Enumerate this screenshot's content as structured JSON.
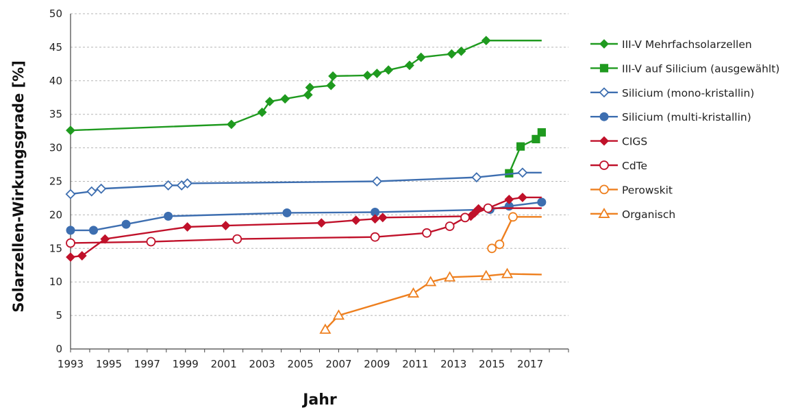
{
  "chart_data": {
    "type": "line",
    "title": "",
    "xlabel": "Jahr",
    "ylabel": "Solarzellen-Wirkungsgrade  [%]",
    "xlim": [
      1993,
      2019
    ],
    "ylim": [
      0,
      50
    ],
    "x_ticks": [
      1993,
      1995,
      1997,
      1999,
      2001,
      2003,
      2005,
      2007,
      2009,
      2011,
      2013,
      2015,
      2017
    ],
    "x_tick_labels": [
      "1993",
      "1995",
      "1997",
      "1999",
      "2001",
      "2003",
      "2005",
      "2007",
      "2009",
      "2011",
      "2013",
      "2015",
      "2017"
    ],
    "y_ticks": [
      0,
      5,
      10,
      15,
      20,
      25,
      30,
      35,
      40,
      45,
      50
    ],
    "y_tick_labels": [
      "0",
      "5",
      "10",
      "15",
      "20",
      "25",
      "30",
      "35",
      "40",
      "45",
      "50"
    ],
    "grid": "horizontal dashed",
    "legend_position": "right",
    "series": [
      {
        "name": "III-V Mehrfachsolarzellen",
        "color": "#1f9a1f",
        "marker": "diamond",
        "filled": true,
        "points": [
          [
            1993.0,
            32.6
          ],
          [
            2001.4,
            33.5
          ],
          [
            2003.0,
            35.3
          ],
          [
            2003.4,
            36.9
          ],
          [
            2004.2,
            37.3
          ],
          [
            2005.4,
            37.9
          ],
          [
            2005.5,
            39.0
          ],
          [
            2006.6,
            39.3
          ],
          [
            2006.7,
            40.7
          ],
          [
            2008.5,
            40.8
          ],
          [
            2009.0,
            41.1
          ],
          [
            2009.6,
            41.6
          ],
          [
            2010.7,
            42.3
          ],
          [
            2011.3,
            43.5
          ],
          [
            2012.9,
            44.0
          ],
          [
            2013.4,
            44.4
          ],
          [
            2014.7,
            46.0
          ]
        ],
        "end": [
          2017.6,
          46.0
        ]
      },
      {
        "name": "III-V auf Silicium (ausgewählt)",
        "color": "#1f9a1f",
        "marker": "square",
        "filled": true,
        "points": [
          [
            2015.9,
            26.2
          ],
          [
            2016.5,
            30.2
          ],
          [
            2017.3,
            31.3
          ],
          [
            2017.6,
            32.3
          ]
        ],
        "end": null
      },
      {
        "name": "Silicium (mono-kristallin)",
        "color": "#3d6eb0",
        "marker": "diamond",
        "filled": false,
        "points": [
          [
            1993.0,
            23.1
          ],
          [
            1994.1,
            23.5
          ],
          [
            1994.6,
            23.9
          ],
          [
            1998.1,
            24.4
          ],
          [
            1998.8,
            24.4
          ],
          [
            1999.1,
            24.7
          ],
          [
            2009.0,
            25.0
          ],
          [
            2014.2,
            25.6
          ],
          [
            2016.6,
            26.3
          ]
        ],
        "end": [
          2017.6,
          26.3
        ]
      },
      {
        "name": "Silicium (multi-kristallin)",
        "color": "#3d6eb0",
        "marker": "circle",
        "filled": true,
        "points": [
          [
            1993.0,
            17.7
          ],
          [
            1994.2,
            17.7
          ],
          [
            1995.9,
            18.6
          ],
          [
            1998.1,
            19.8
          ],
          [
            2004.3,
            20.3
          ],
          [
            2008.9,
            20.4
          ],
          [
            2014.9,
            20.8
          ],
          [
            2015.9,
            21.3
          ],
          [
            2017.6,
            21.9
          ]
        ],
        "end": null
      },
      {
        "name": "CIGS",
        "color": "#c0112a",
        "marker": "diamond",
        "filled": true,
        "points": [
          [
            1993.0,
            13.7
          ],
          [
            1993.6,
            13.9
          ],
          [
            1994.8,
            16.4
          ],
          [
            1999.1,
            18.2
          ],
          [
            2001.1,
            18.4
          ],
          [
            2006.1,
            18.8
          ],
          [
            2007.9,
            19.2
          ],
          [
            2008.9,
            19.4
          ],
          [
            2009.3,
            19.6
          ],
          [
            2013.9,
            19.8
          ],
          [
            2014.1,
            20.3
          ],
          [
            2014.3,
            20.9
          ],
          [
            2014.8,
            21.0
          ],
          [
            2015.9,
            22.3
          ],
          [
            2016.6,
            22.6
          ]
        ],
        "end": [
          2017.6,
          22.6
        ]
      },
      {
        "name": "CdTe",
        "color": "#c0112a",
        "marker": "circle",
        "filled": false,
        "points": [
          [
            1993.0,
            15.8
          ],
          [
            1997.2,
            16.0
          ],
          [
            2001.7,
            16.4
          ],
          [
            2008.9,
            16.7
          ],
          [
            2011.6,
            17.3
          ],
          [
            2012.8,
            18.3
          ],
          [
            2013.6,
            19.6
          ],
          [
            2014.8,
            21.0
          ]
        ],
        "end": [
          2017.6,
          21.0
        ]
      },
      {
        "name": "Perowskit",
        "color": "#ee7f1e",
        "marker": "circle",
        "filled": false,
        "points": [
          [
            2015.0,
            15.0
          ],
          [
            2015.4,
            15.6
          ],
          [
            2016.1,
            19.7
          ]
        ],
        "end": [
          2017.6,
          19.7
        ]
      },
      {
        "name": "Organisch",
        "color": "#ee7f1e",
        "marker": "triangle",
        "filled": false,
        "points": [
          [
            2006.3,
            2.9
          ],
          [
            2007.0,
            5.0
          ],
          [
            2010.9,
            8.3
          ],
          [
            2011.8,
            10.0
          ],
          [
            2012.8,
            10.7
          ],
          [
            2014.7,
            10.9
          ],
          [
            2015.8,
            11.2
          ]
        ],
        "end": [
          2017.6,
          11.1
        ]
      }
    ]
  }
}
